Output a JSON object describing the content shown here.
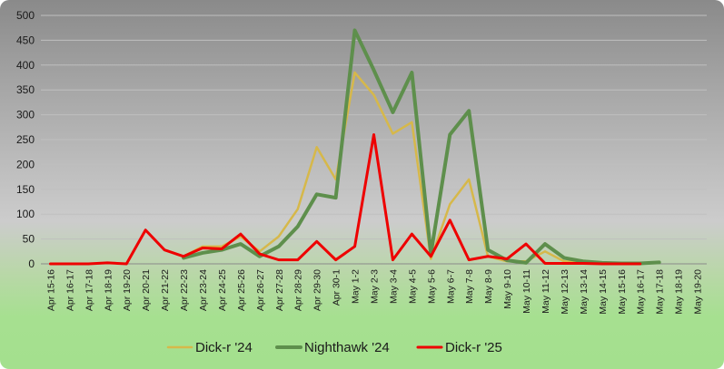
{
  "chart_data": {
    "type": "line",
    "title": "",
    "xlabel": "",
    "ylabel": "",
    "ylim": [
      0,
      500
    ],
    "yticks": [
      0,
      50,
      100,
      150,
      200,
      250,
      300,
      350,
      400,
      450,
      500
    ],
    "grid": "horizontal",
    "legend_position": "bottom",
    "categories": [
      "Apr 15-16",
      "Apr 16-17",
      "Apr 17-18",
      "Apr 18-19",
      "Apr 19-20",
      "Apr 20-21",
      "Apr 21-22",
      "Apr 22-23",
      "Apr 23-24",
      "Apr 24-25",
      "Apr 25-26",
      "Apr 26-27",
      "Apr 27-28",
      "Apr 28-29",
      "Apr 29-30",
      "Apr 30-1",
      "May 1-2",
      "May 2-3",
      "May 3-4",
      "May 4-5",
      "May 5-6",
      "May 6-7",
      "May 7-8",
      "May 8-9",
      "May 9-10",
      "May 10-11",
      "May 11-12",
      "May 12-13",
      "May 13-14",
      "May 14-15",
      "May 15-16",
      "May 16-17",
      "May 17-18",
      "May 18-19",
      "May 19-20"
    ],
    "series": [
      {
        "name": "Dick-r '24",
        "color": "#d6b84a",
        "width": 2.5,
        "values": [
          null,
          null,
          null,
          null,
          null,
          null,
          null,
          15,
          35,
          35,
          55,
          25,
          55,
          110,
          235,
          170,
          385,
          340,
          262,
          285,
          10,
          120,
          170,
          15,
          5,
          5,
          25,
          5,
          2,
          1,
          0,
          null,
          null,
          null,
          null
        ]
      },
      {
        "name": "Nighthawk '24",
        "color": "#5e8f4c",
        "width": 4,
        "values": [
          null,
          null,
          null,
          null,
          null,
          null,
          null,
          12,
          22,
          28,
          40,
          15,
          35,
          75,
          140,
          133,
          470,
          390,
          305,
          385,
          20,
          260,
          308,
          28,
          7,
          2,
          40,
          12,
          5,
          2,
          1,
          1,
          3,
          null,
          null
        ]
      },
      {
        "name": "Dick-r '25",
        "color": "#ee0000",
        "width": 3,
        "values": [
          0,
          0,
          0,
          2,
          0,
          68,
          28,
          15,
          32,
          30,
          60,
          20,
          8,
          8,
          45,
          8,
          35,
          260,
          8,
          60,
          15,
          88,
          8,
          15,
          10,
          40,
          1,
          1,
          1,
          0,
          0,
          0,
          null,
          null,
          null
        ]
      }
    ]
  }
}
